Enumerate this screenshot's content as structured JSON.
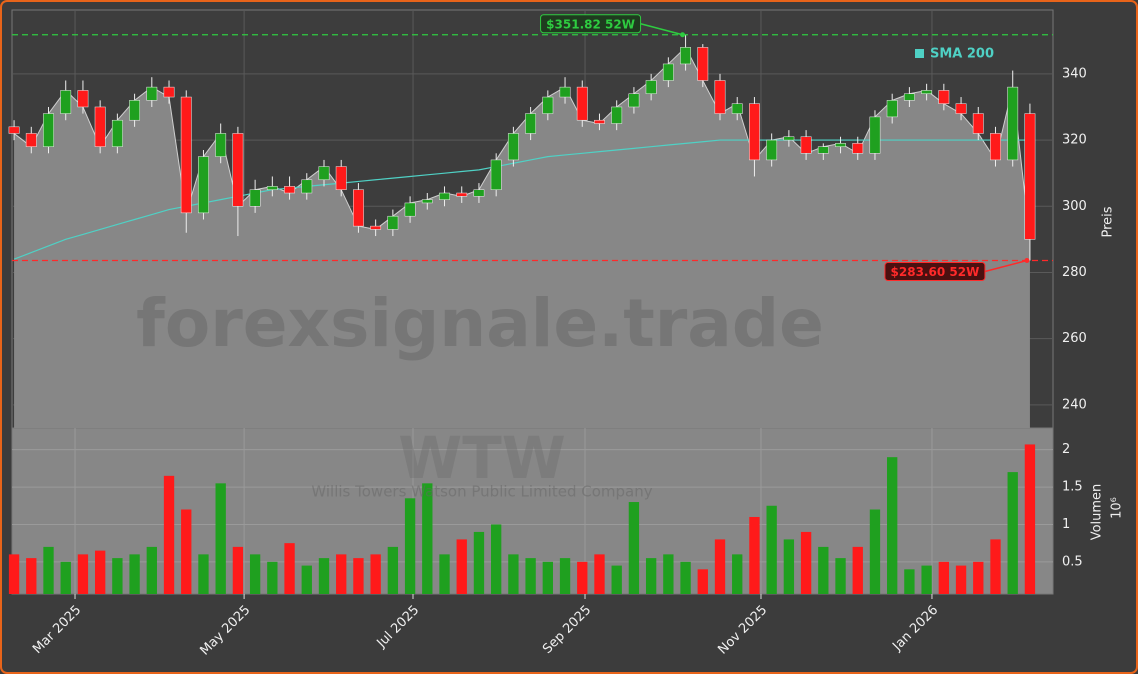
{
  "chart_data": [
    {
      "type": "candlestick",
      "categories": [
        null,
        null,
        null,
        null,
        null,
        null,
        null,
        null,
        null,
        null,
        null,
        null,
        null,
        null,
        null,
        null,
        null,
        null,
        null,
        null,
        null,
        null,
        null,
        null,
        null,
        null,
        null,
        null,
        null,
        null,
        null,
        null,
        null,
        null,
        null,
        null,
        null,
        null,
        null,
        null,
        null,
        null,
        null,
        null,
        null,
        null,
        null,
        null,
        null,
        null,
        null,
        null,
        null,
        null,
        null,
        null,
        null,
        null,
        null,
        null
      ],
      "open": [
        324,
        322,
        318,
        328,
        335,
        330,
        318,
        326,
        332,
        336,
        333,
        298,
        315,
        322,
        300,
        305,
        306,
        304,
        308,
        312,
        305,
        294,
        293,
        297,
        301,
        302,
        304,
        303,
        305,
        314,
        322,
        328,
        333,
        336,
        326,
        325,
        330,
        334,
        338,
        343,
        348,
        338,
        328,
        331,
        314,
        320,
        321,
        316,
        318,
        319,
        316,
        327,
        332,
        334,
        335,
        331,
        328,
        322,
        314,
        328
      ],
      "high": [
        326,
        324,
        330,
        338,
        338,
        332,
        328,
        334,
        339,
        338,
        335,
        317,
        325,
        324,
        308,
        309,
        309,
        310,
        314,
        314,
        307,
        296,
        299,
        303,
        304,
        306,
        306,
        307,
        316,
        324,
        330,
        335,
        339,
        338,
        328,
        332,
        336,
        340,
        345,
        351.82,
        349,
        340,
        333,
        333,
        322,
        323,
        323,
        319,
        321,
        321,
        329,
        334,
        336,
        337,
        337,
        333,
        330,
        324,
        341,
        331
      ],
      "low": [
        320,
        316,
        316,
        326,
        328,
        316,
        316,
        324,
        330,
        331,
        292,
        296,
        313,
        291,
        298,
        303,
        302,
        302,
        306,
        303,
        292,
        291,
        291,
        295,
        299,
        300,
        301,
        301,
        303,
        312,
        320,
        326,
        331,
        324,
        323,
        323,
        328,
        332,
        336,
        341,
        336,
        326,
        326,
        309,
        312,
        318,
        314,
        314,
        316,
        314,
        314,
        325,
        330,
        332,
        329,
        326,
        320,
        312,
        312,
        283.6
      ],
      "close": [
        322,
        318,
        328,
        335,
        330,
        318,
        326,
        332,
        336,
        333,
        298,
        315,
        322,
        300,
        305,
        306,
        304,
        308,
        312,
        305,
        294,
        293,
        297,
        301,
        302,
        304,
        303,
        305,
        314,
        322,
        328,
        333,
        336,
        326,
        325,
        330,
        334,
        338,
        343,
        348,
        338,
        328,
        331,
        314,
        320,
        321,
        316,
        318,
        319,
        316,
        327,
        332,
        334,
        335,
        331,
        328,
        322,
        314,
        336,
        290
      ],
      "up_color": "#1fa01f",
      "down_color": "#ff1a1a",
      "area_color": "#878787",
      "sma": {
        "name": "SMA 200",
        "color": "#4fd1c5",
        "values": [
          284,
          286,
          288,
          290,
          291.5,
          293,
          294.5,
          296,
          297.5,
          299,
          300,
          301,
          302,
          303,
          304,
          305,
          305.5,
          306,
          306.5,
          307,
          307.5,
          308,
          308.5,
          309,
          309.5,
          310,
          310.5,
          311,
          312,
          313,
          314,
          315,
          315.5,
          316,
          316.5,
          317,
          317.5,
          318,
          318.5,
          319,
          319.5,
          320,
          320,
          320,
          320,
          320,
          320,
          320,
          320,
          320,
          320,
          320,
          320,
          320,
          320,
          320,
          320,
          320,
          320,
          320
        ]
      },
      "ylim": [
        233,
        359.3
      ],
      "yticks": [
        240,
        260,
        280,
        300,
        320,
        340
      ],
      "ylabel": "Preis",
      "grid": true,
      "annotations": [
        {
          "value": 351.82,
          "label": "$351.82 52W",
          "color": "#2ecc40"
        },
        {
          "value": 283.6,
          "label": "$283.60 52W",
          "color": "#ff2a2a"
        }
      ],
      "watermark": "forexsignale.trade",
      "symbol": "WTW",
      "company": "Willis Towers Watson Public Limited Company"
    },
    {
      "type": "bar",
      "values": [
        0.6,
        0.55,
        0.7,
        0.5,
        0.6,
        0.65,
        0.55,
        0.6,
        0.7,
        1.65,
        1.2,
        0.6,
        1.55,
        0.7,
        0.6,
        0.5,
        0.75,
        0.45,
        0.55,
        0.6,
        0.55,
        0.6,
        0.7,
        1.35,
        1.55,
        0.6,
        0.8,
        0.9,
        1.0,
        0.6,
        0.55,
        0.5,
        0.55,
        0.5,
        0.6,
        0.45,
        1.3,
        0.55,
        0.6,
        0.5,
        0.4,
        0.8,
        0.6,
        1.1,
        1.25,
        0.8,
        0.9,
        0.7,
        0.55,
        0.7,
        1.2,
        1.9,
        0.4,
        0.45,
        0.5,
        0.45,
        0.5,
        0.8,
        1.7,
        2.07
      ],
      "ylim": [
        0.07,
        2.29
      ],
      "yticks": [
        0.5,
        1.0,
        1.5,
        2.0
      ],
      "ylabel": "Volumen",
      "ylabel_unit": "10⁶",
      "xlim": [
        -0.12,
        60.34
      ],
      "xticks": [
        {
          "value": 3.54,
          "label": "Mar 2025"
        },
        {
          "value": 13.36,
          "label": "May 2025"
        },
        {
          "value": 23.17,
          "label": "Jul 2025"
        },
        {
          "value": 33.16,
          "label": "Sep 2025"
        },
        {
          "value": 43.38,
          "label": "Nov 2025"
        },
        {
          "value": 53.31,
          "label": "Jan 2026"
        }
      ]
    }
  ]
}
